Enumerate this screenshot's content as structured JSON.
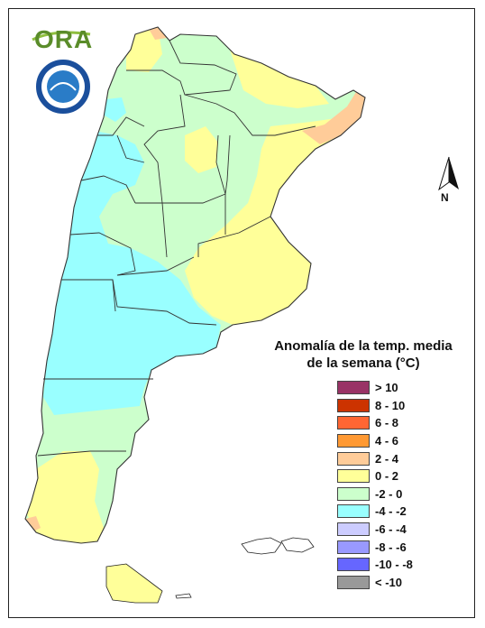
{
  "logo": {
    "text": "ORA"
  },
  "legend": {
    "title_line1": "Anomalía de la temp. media",
    "title_line2": "de la semana (°C)",
    "items": [
      {
        "label": "> 10",
        "color": "#993366"
      },
      {
        "label": "8 - 10",
        "color": "#cc3300"
      },
      {
        "label": "6 - 8",
        "color": "#ff6633"
      },
      {
        "label": "4 - 6",
        "color": "#ff9933"
      },
      {
        "label": "2 - 4",
        "color": "#ffcc99"
      },
      {
        "label": "0 - 2",
        "color": "#ffff99"
      },
      {
        "label": "-2 - 0",
        "color": "#ccffcc"
      },
      {
        "label": "-4 - -2",
        "color": "#99ffff"
      },
      {
        "label": "-6 - -4",
        "color": "#ccccff"
      },
      {
        "label": "-8 - -6",
        "color": "#9999ff"
      },
      {
        "label": "-10 - -8",
        "color": "#6666ff"
      },
      {
        "label": "< -10",
        "color": "#999999"
      }
    ]
  },
  "north_arrow": {
    "label": "N"
  }
}
